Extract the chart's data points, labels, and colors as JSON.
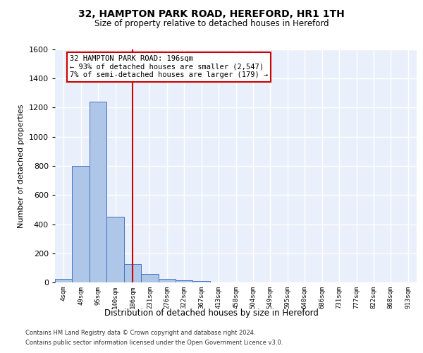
{
  "title": "32, HAMPTON PARK ROAD, HEREFORD, HR1 1TH",
  "subtitle": "Size of property relative to detached houses in Hereford",
  "xlabel": "Distribution of detached houses by size in Hereford",
  "ylabel": "Number of detached properties",
  "bar_values": [
    25,
    800,
    1240,
    450,
    125,
    60,
    25,
    15,
    10,
    0,
    0,
    0,
    0,
    0,
    0,
    0,
    0,
    0,
    0,
    0,
    0
  ],
  "bar_labels": [
    "4sqm",
    "49sqm",
    "95sqm",
    "140sqm",
    "186sqm",
    "231sqm",
    "276sqm",
    "322sqm",
    "367sqm",
    "413sqm",
    "458sqm",
    "504sqm",
    "549sqm",
    "595sqm",
    "640sqm",
    "686sqm",
    "731sqm",
    "777sqm",
    "822sqm",
    "868sqm",
    "913sqm"
  ],
  "bar_color": "#aec6e8",
  "bar_edge_color": "#4472c4",
  "background_color": "#eaf0fb",
  "grid_color": "#ffffff",
  "ylim": [
    0,
    1600
  ],
  "yticks": [
    0,
    200,
    400,
    600,
    800,
    1000,
    1200,
    1400,
    1600
  ],
  "red_line_index": 4,
  "annotation_lines": [
    "32 HAMPTON PARK ROAD: 196sqm",
    "← 93% of detached houses are smaller (2,547)",
    "7% of semi-detached houses are larger (179) →"
  ],
  "annotation_box_color": "#ffffff",
  "annotation_box_edge": "#cc0000",
  "red_line_color": "#cc0000",
  "footer1": "Contains HM Land Registry data © Crown copyright and database right 2024.",
  "footer2": "Contains public sector information licensed under the Open Government Licence v3.0."
}
